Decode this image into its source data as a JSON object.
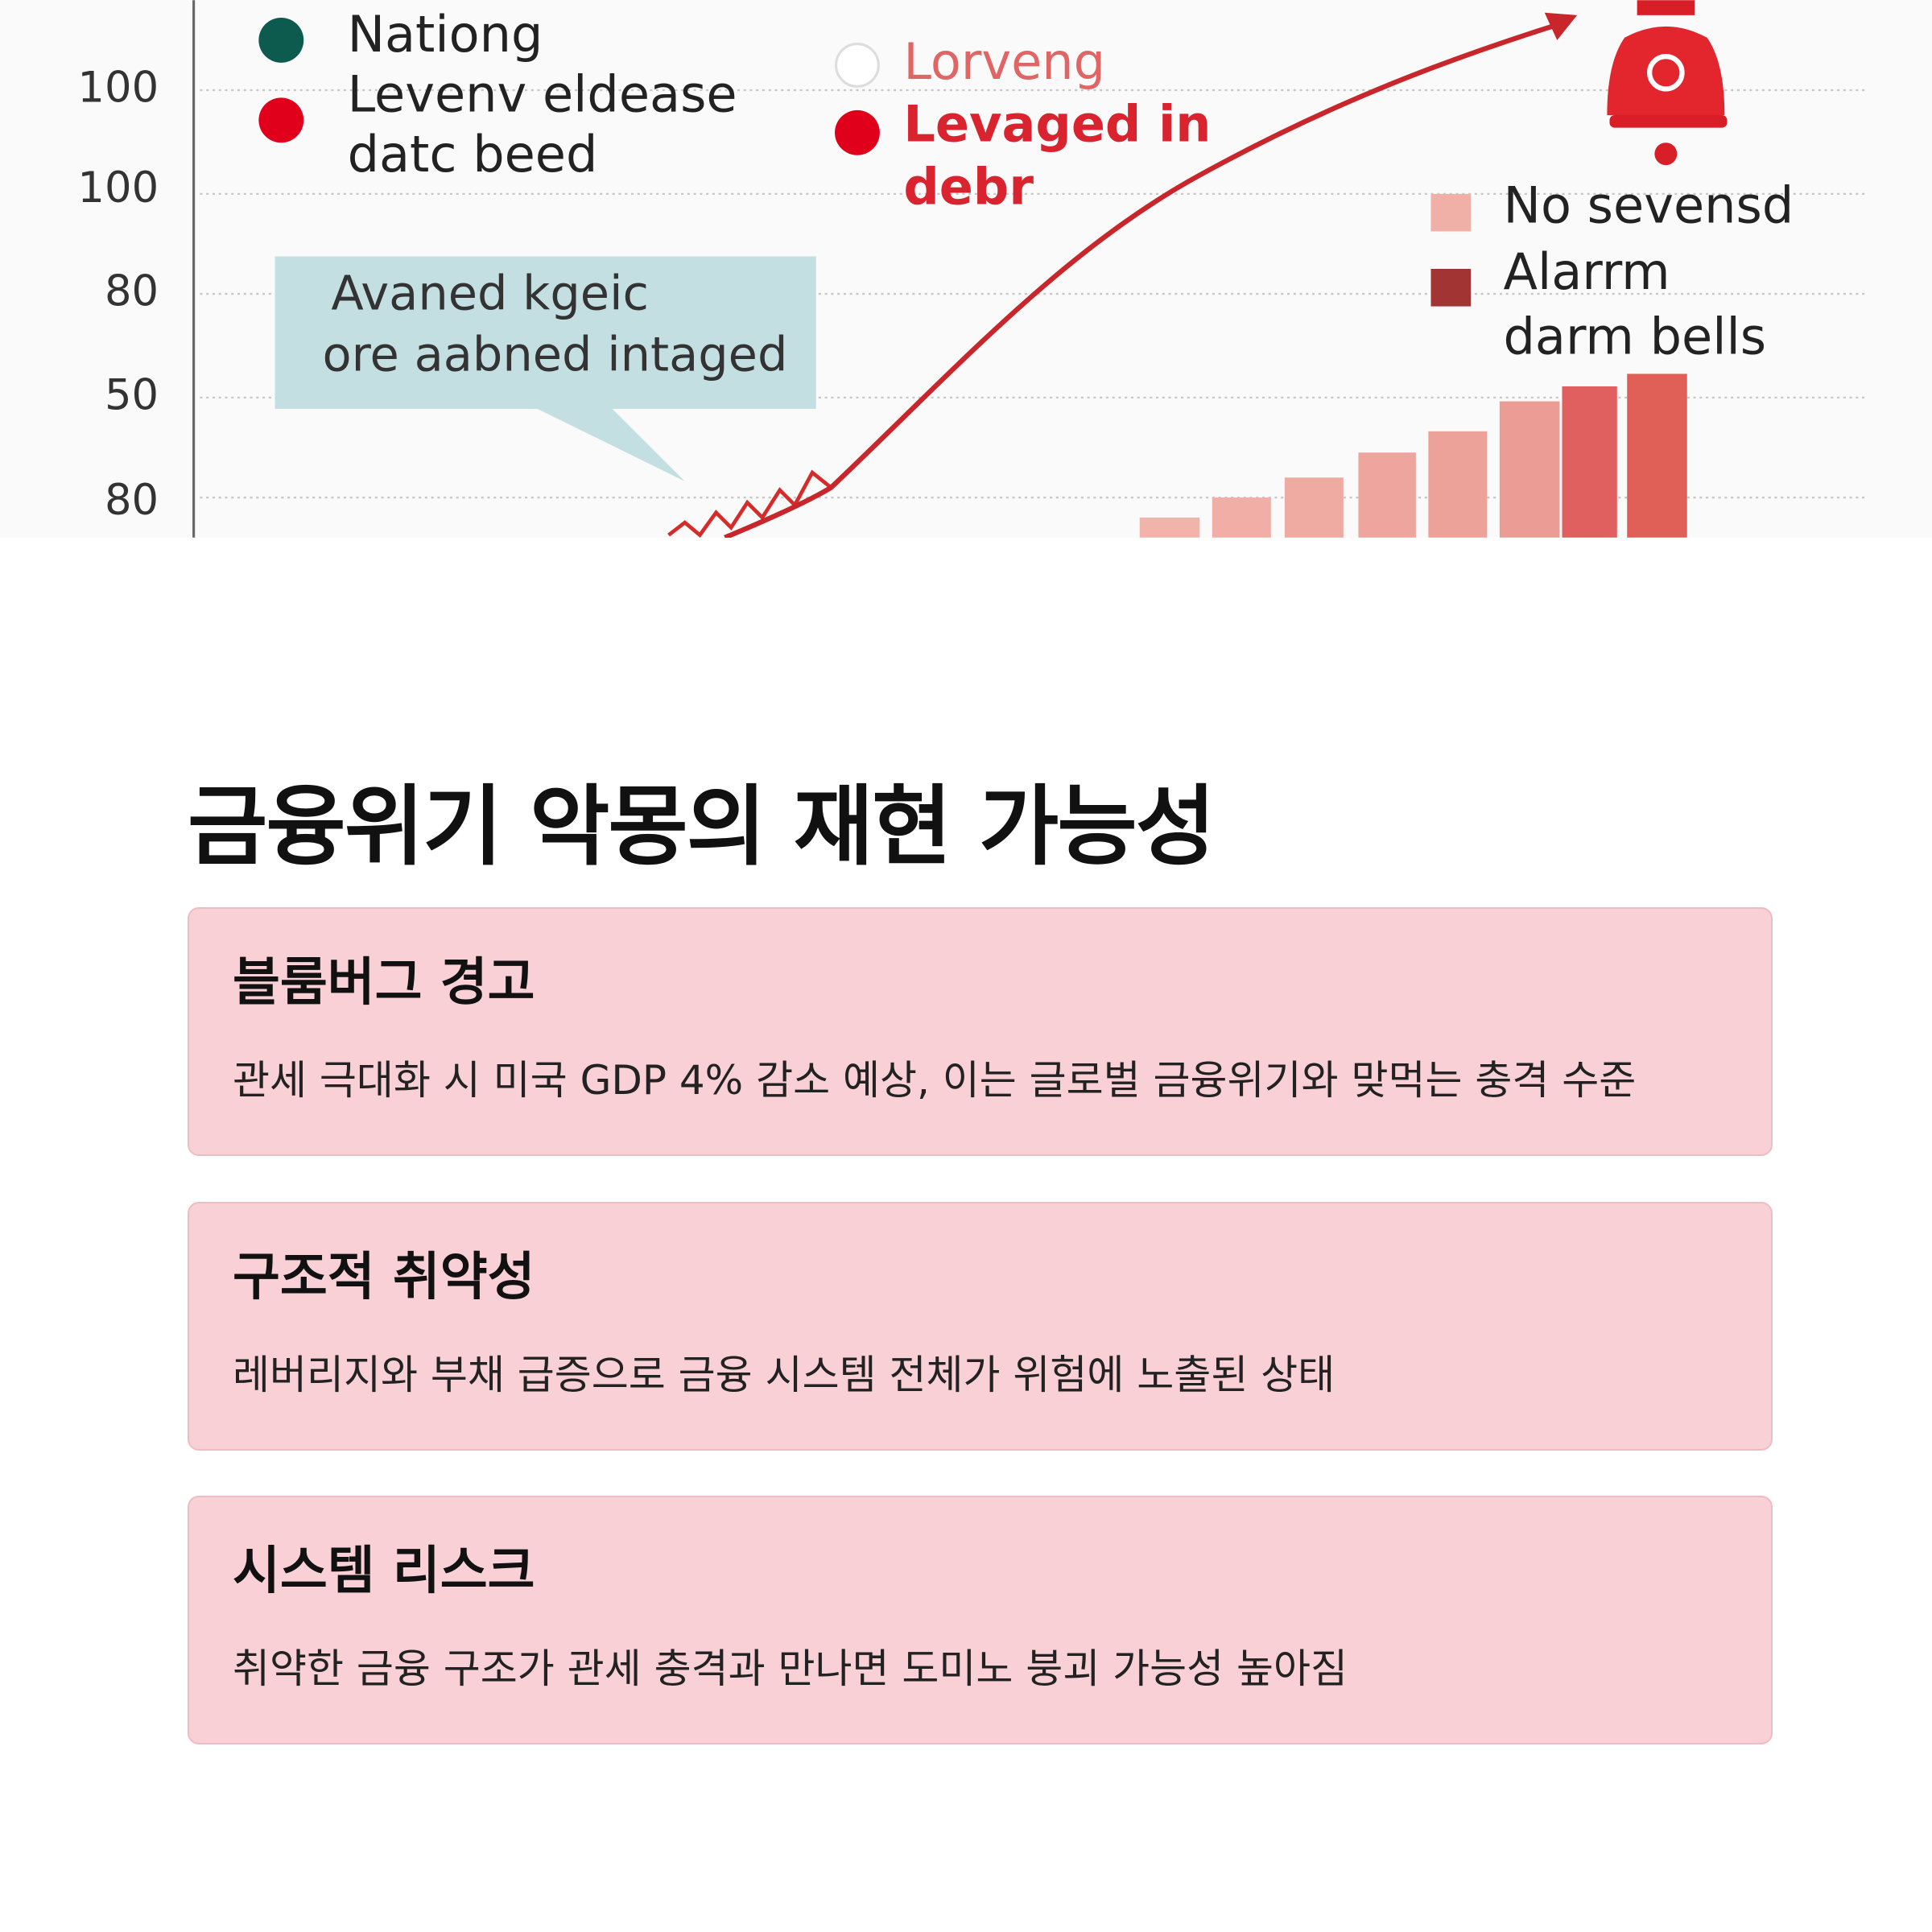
{
  "illustration": {
    "y_labels": [
      "100",
      "100",
      "80",
      "50",
      "80"
    ],
    "legend_left": [
      "Nationg",
      "Levenv eldease",
      "datc beed"
    ],
    "legend_mid": [
      "Lorveng",
      "Levaged in",
      "debr"
    ],
    "legend_right": [
      "No sevensd",
      "Alarrm",
      "darm bells"
    ],
    "callout": [
      "Avaned kgeic",
      "ore aabned intaged"
    ]
  },
  "heading": "금융위기 악몽의 재현 가능성",
  "cards": [
    {
      "title": "블룸버그 경고",
      "text": "관세 극대화 시 미국 GDP 4% 감소 예상, 이는 글로벌 금융위기와 맞먹는 충격 수준"
    },
    {
      "title": "구조적 취약성",
      "text": "레버리지와 부채 급증으로 금융 시스템 전체가 위험에 노출된 상태"
    },
    {
      "title": "시스템 리스크",
      "text": "취약한 금융 구조가 관세 충격과 만나면 도미노 붕괴 가능성 높아짐"
    }
  ]
}
